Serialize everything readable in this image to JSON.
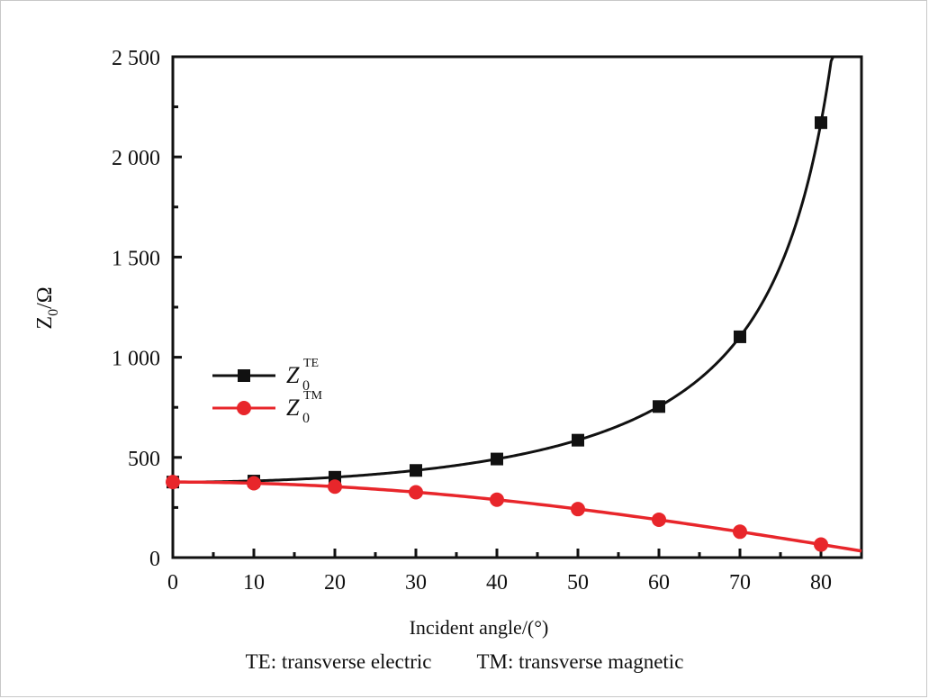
{
  "chart_data": {
    "type": "line",
    "xlabel": "Incident angle/(°)",
    "ylabel_main": "Z",
    "ylabel_sub": "0",
    "ylabel_tail": "/Ω",
    "xlim": [
      0,
      85
    ],
    "ylim": [
      0,
      2500
    ],
    "x_ticks": [
      0,
      10,
      20,
      30,
      40,
      50,
      60,
      70,
      80
    ],
    "x_tick_labels": [
      "0",
      "10",
      "20",
      "30",
      "40",
      "50",
      "60",
      "70",
      "80"
    ],
    "y_ticks": [
      0,
      500,
      1000,
      1500,
      2000,
      2500
    ],
    "y_tick_labels": [
      "0",
      "500",
      "1 000",
      "1 500",
      "2 000",
      "2 500"
    ],
    "grid": false,
    "legend_position": "middle-left",
    "series": [
      {
        "name": "Z0TE",
        "legend_base": "Z",
        "legend_sub": "0",
        "legend_sup": "TE",
        "color": "#111111",
        "marker": "square",
        "x": [
          0,
          10,
          20,
          30,
          40,
          50,
          60,
          70,
          80
        ],
        "y": [
          377,
          382,
          401,
          435,
          492,
          586,
          754,
          1102,
          2171
        ]
      },
      {
        "name": "Z0TM",
        "legend_base": "Z",
        "legend_sub": "0",
        "legend_sup": "TM",
        "color": "#e8262b",
        "marker": "circle",
        "x": [
          0,
          10,
          20,
          30,
          40,
          50,
          60,
          70,
          80
        ],
        "y": [
          377,
          371,
          354,
          326,
          289,
          242,
          189,
          129,
          65
        ]
      }
    ]
  },
  "caption": {
    "te": "TE: transverse electric",
    "tm": "TM: transverse magnetic"
  }
}
